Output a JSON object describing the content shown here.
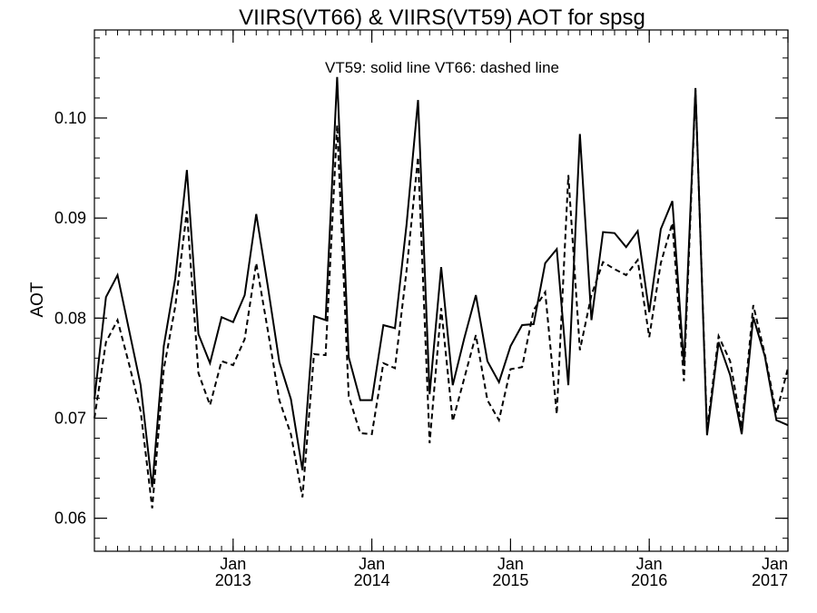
{
  "chart_data": {
    "type": "line",
    "title": "VIIRS(VT66) & VIIRS(VT59)  AOT for spsg",
    "annotation": "VT59: solid line   VT66: dashed line",
    "xlabel": "",
    "ylabel": "AOT",
    "xlim": [
      "2012-01",
      "2017-01"
    ],
    "ylim": [
      0.0567,
      0.1088
    ],
    "y_ticks": [
      0.06,
      0.07,
      0.08,
      0.09,
      0.1
    ],
    "y_tick_labels": [
      "0.06",
      "0.07",
      "0.08",
      "0.09",
      "0.10"
    ],
    "x_ticks": [
      {
        "x": "2013-01",
        "month": "Jan",
        "year": "2013"
      },
      {
        "x": "2014-01",
        "month": "Jan",
        "year": "2014"
      },
      {
        "x": "2015-01",
        "month": "Jan",
        "year": "2015"
      },
      {
        "x": "2016-01",
        "month": "Jan",
        "year": "2016"
      },
      {
        "x": "2017-01",
        "month": "Jan",
        "year": "2017"
      }
    ],
    "grid": false,
    "x": [
      "2012-01",
      "2012-02",
      "2012-03",
      "2012-04",
      "2012-05",
      "2012-06",
      "2012-07",
      "2012-08",
      "2012-09",
      "2012-10",
      "2012-11",
      "2012-12",
      "2013-01",
      "2013-02",
      "2013-03",
      "2013-04",
      "2013-05",
      "2013-06",
      "2013-07",
      "2013-08",
      "2013-09",
      "2013-10",
      "2013-11",
      "2013-12",
      "2014-01",
      "2014-02",
      "2014-03",
      "2014-04",
      "2014-05",
      "2014-06",
      "2014-07",
      "2014-08",
      "2014-09",
      "2014-10",
      "2014-11",
      "2014-12",
      "2015-01",
      "2015-02",
      "2015-03",
      "2015-04",
      "2015-05",
      "2015-06",
      "2015-07",
      "2015-08",
      "2015-09",
      "2015-10",
      "2015-11",
      "2015-12",
      "2016-01",
      "2016-02",
      "2016-03",
      "2016-04",
      "2016-05",
      "2016-06",
      "2016-07",
      "2016-08",
      "2016-09",
      "2016-10",
      "2016-11",
      "2016-12",
      "2017-01"
    ],
    "series": [
      {
        "style": "solid",
        "values": [
          0.0719,
          0.0821,
          0.0843,
          0.0788,
          0.0733,
          0.0631,
          0.0772,
          0.084,
          0.0948,
          0.0784,
          0.0755,
          0.0801,
          0.0796,
          0.0823,
          0.0904,
          0.0832,
          0.0756,
          0.0719,
          0.0648,
          0.0802,
          0.0798,
          0.1041,
          0.0761,
          0.0718,
          0.0718,
          0.0793,
          0.079,
          0.0893,
          0.1018,
          0.0724,
          0.0851,
          0.0733,
          0.078,
          0.0823,
          0.0757,
          0.0736,
          0.0772,
          0.0793,
          0.0794,
          0.0855,
          0.0869,
          0.0733,
          0.0984,
          0.0798,
          0.0886,
          0.0885,
          0.0871,
          0.0887,
          0.0806,
          0.0889,
          0.0917,
          0.0753,
          0.103,
          0.0683,
          0.0776,
          0.0743,
          0.0684,
          0.0801,
          0.0762,
          0.0698,
          0.0693
        ]
      },
      {
        "style": "dashed",
        "values": [
          0.07,
          0.0776,
          0.0798,
          0.0754,
          0.0707,
          0.061,
          0.0749,
          0.0812,
          0.0907,
          0.0745,
          0.0713,
          0.0757,
          0.0753,
          0.0779,
          0.0855,
          0.0788,
          0.0718,
          0.0684,
          0.0621,
          0.0764,
          0.0763,
          0.0993,
          0.0722,
          0.0685,
          0.0684,
          0.0755,
          0.075,
          0.0847,
          0.0961,
          0.0675,
          0.081,
          0.0697,
          0.074,
          0.0783,
          0.0718,
          0.0698,
          0.0749,
          0.0751,
          0.0808,
          0.0826,
          0.0704,
          0.0943,
          0.0768,
          0.0823,
          0.0856,
          0.0849,
          0.0843,
          0.0858,
          0.0781,
          0.0855,
          0.0895,
          0.0737,
          0.1028,
          0.0688,
          0.0782,
          0.0757,
          0.069,
          0.0813,
          0.0764,
          0.0705,
          0.075
        ]
      }
    ]
  }
}
